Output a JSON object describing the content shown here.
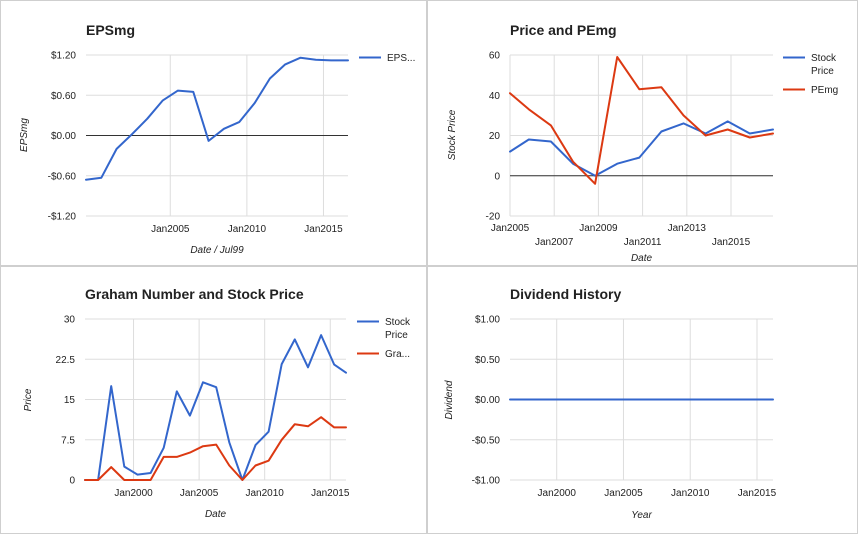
{
  "chart_data": [
    {
      "id": "eps",
      "type": "line",
      "title": "EPSmg",
      "xlabel": "Date / Jul99",
      "ylabel": "EPSmg",
      "xlim": [
        1999.5,
        2016.6
      ],
      "ylim": [
        -1.2,
        1.2
      ],
      "yticks": [
        -1.2,
        -0.6,
        0,
        0.6,
        1.2
      ],
      "ytick_labels": [
        "-$1.20",
        "-$0.60",
        "$0.00",
        "$0.60",
        "$1.20"
      ],
      "xticks": [
        2005,
        2010,
        2015
      ],
      "xtick_labels": [
        "Jan2005",
        "Jan2010",
        "Jan2015"
      ],
      "zero_line": true,
      "grid": true,
      "legend_position": "right",
      "series": [
        {
          "name": "EPS...",
          "color": "#3366cc",
          "x": [
            1999.5,
            2000.5,
            2001.5,
            2002.5,
            2003.5,
            2004.5,
            2005.5,
            2006.5,
            2007.5,
            2008.5,
            2009.5,
            2010.5,
            2011.5,
            2012.5,
            2013.5,
            2014.5,
            2015.5,
            2016.6
          ],
          "values": [
            -0.66,
            -0.63,
            -0.2,
            0.02,
            0.25,
            0.52,
            0.67,
            0.65,
            -0.08,
            0.1,
            0.2,
            0.48,
            0.85,
            1.06,
            1.16,
            1.13,
            1.12,
            1.12
          ]
        }
      ]
    },
    {
      "id": "pe",
      "type": "line",
      "title": "Price and PEmg",
      "xlabel": "Date",
      "ylabel": "Stock Price",
      "xlim": [
        2005,
        2016.9
      ],
      "ylim": [
        -20,
        60
      ],
      "yticks": [
        -20,
        0,
        20,
        40,
        60
      ],
      "ytick_labels": [
        "-20",
        "0",
        "20",
        "40",
        "60"
      ],
      "xticks": [
        2005,
        2007,
        2009,
        2011,
        2013,
        2015
      ],
      "xtick_labels": [
        "Jan2005",
        "Jan2007",
        "Jan2009",
        "Jan2011",
        "Jan2013",
        "Jan2015"
      ],
      "zero_line": true,
      "grid": true,
      "legend_position": "right",
      "series": [
        {
          "name": "Stock Price",
          "color": "#3366cc",
          "x": [
            2005,
            2005.85,
            2006.85,
            2007.85,
            2008.85,
            2009.85,
            2010.85,
            2011.85,
            2012.85,
            2013.85,
            2014.85,
            2015.85,
            2016.9
          ],
          "values": [
            12,
            18,
            17,
            6,
            0,
            6,
            9,
            22,
            26,
            21,
            27,
            21,
            23
          ]
        },
        {
          "name": "PEmg",
          "color": "#dc3912",
          "x": [
            2005,
            2005.85,
            2006.85,
            2007.85,
            2008.85,
            2009.85,
            2010.85,
            2011.85,
            2012.85,
            2013.85,
            2014.85,
            2015.85,
            2016.9
          ],
          "values": [
            41,
            33,
            25,
            7,
            -4,
            59,
            43,
            44,
            30,
            20,
            23,
            19,
            21
          ]
        }
      ]
    },
    {
      "id": "graham",
      "type": "line",
      "title": "Graham Number and Stock Price",
      "xlabel": "Date",
      "ylabel": "Price",
      "xlim": [
        1996.3,
        2016.2
      ],
      "ylim": [
        0,
        30
      ],
      "yticks": [
        0,
        7.5,
        15,
        22.5,
        30
      ],
      "ytick_labels": [
        "0",
        "7.5",
        "15",
        "22.5",
        "30"
      ],
      "xticks": [
        2000,
        2005,
        2010,
        2015
      ],
      "xtick_labels": [
        "Jan2000",
        "Jan2005",
        "Jan2010",
        "Jan2015"
      ],
      "grid": true,
      "legend_position": "right",
      "series": [
        {
          "name": "Stock Price",
          "color": "#3366cc",
          "x": [
            1996.3,
            1997.3,
            1998.3,
            1999.3,
            2000.3,
            2001.3,
            2002.3,
            2003.3,
            2004.3,
            2005.3,
            2006.3,
            2007.3,
            2008.3,
            2009.3,
            2010.3,
            2011.3,
            2012.3,
            2013.3,
            2014.3,
            2015.3,
            2016.2
          ],
          "values": [
            0,
            0,
            17.5,
            2.5,
            1,
            1.3,
            6,
            16.5,
            12,
            18.2,
            17.3,
            7,
            0,
            6.5,
            9,
            21.6,
            26.2,
            21,
            27,
            21.5,
            20
          ]
        },
        {
          "name": "Gra...",
          "color": "#dc3912",
          "x": [
            1996.3,
            1997.3,
            1998.3,
            1999.3,
            2000.3,
            2001.3,
            2002.3,
            2003.3,
            2004.3,
            2005.3,
            2006.3,
            2007.3,
            2008.3,
            2009.3,
            2010.3,
            2011.3,
            2012.3,
            2013.3,
            2014.3,
            2015.3,
            2016.2
          ],
          "values": [
            0,
            0,
            2.4,
            0,
            0,
            0,
            4.3,
            4.3,
            5.1,
            6.3,
            6.6,
            2.7,
            0,
            2.7,
            3.6,
            7.5,
            10.4,
            10,
            11.7,
            9.8,
            9.8
          ]
        }
      ]
    },
    {
      "id": "div",
      "type": "line",
      "title": "Dividend History",
      "xlabel": "Year",
      "ylabel": "Dividend",
      "xlim": [
        1996.5,
        2016.2
      ],
      "ylim": [
        -1,
        1
      ],
      "yticks": [
        -1,
        -0.5,
        0,
        0.5,
        1
      ],
      "ytick_labels": [
        "-$1.00",
        "-$0.50",
        "$0.00",
        "$0.50",
        "$1.00"
      ],
      "xticks": [
        2000,
        2005,
        2010,
        2015
      ],
      "xtick_labels": [
        "Jan2000",
        "Jan2005",
        "Jan2010",
        "Jan2015"
      ],
      "grid": true,
      "series": [
        {
          "color": "#3366cc",
          "x": [
            1996.5,
            2016.2
          ],
          "values": [
            0,
            0
          ]
        }
      ]
    }
  ]
}
